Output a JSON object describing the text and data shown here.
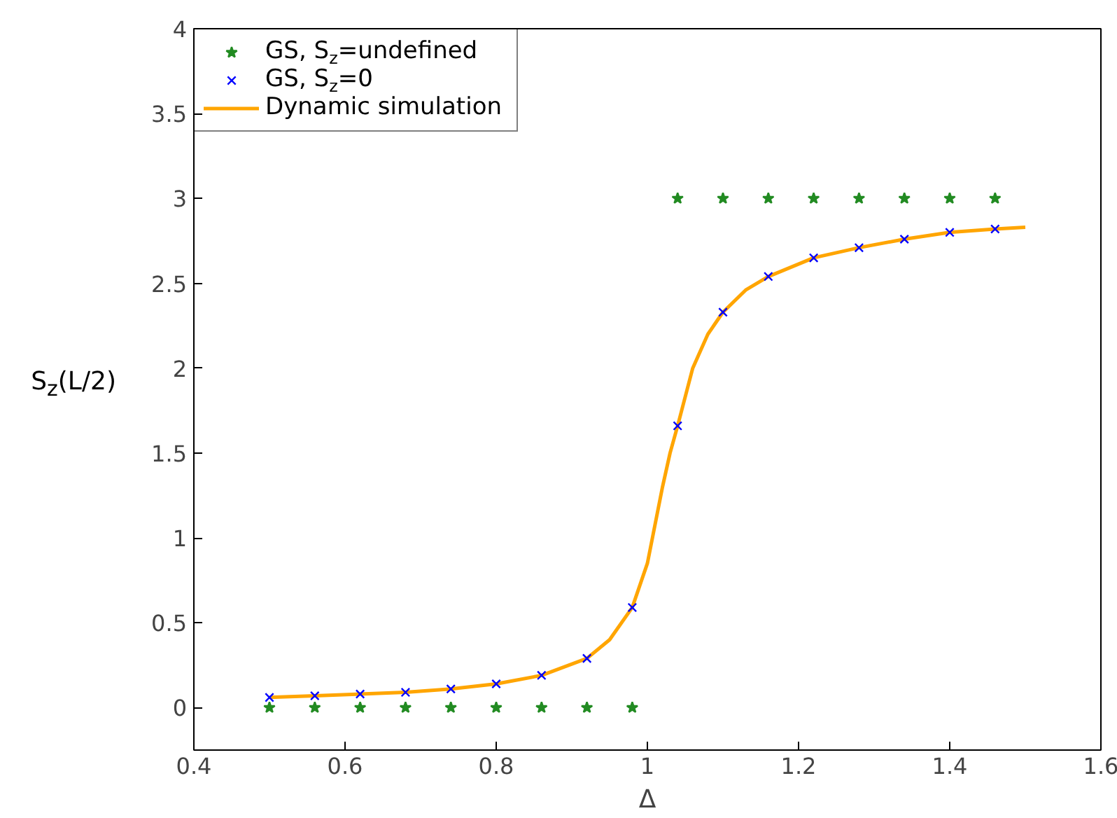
{
  "chart_data": {
    "type": "scatter",
    "xlabel": "Δ",
    "ylabel": "S$_{z}$(L/2)",
    "xlim": [
      0.4,
      1.6
    ],
    "ylim": [
      -0.25,
      4
    ],
    "xticks": [
      0.4,
      0.6,
      0.8,
      1,
      1.2,
      1.4,
      1.6
    ],
    "yticks": [
      0,
      0.5,
      1,
      1.5,
      2,
      2.5,
      3,
      3.5,
      4
    ],
    "grid": false,
    "legend": "top left",
    "series": [
      {
        "name": "GS, S$_{z}$=undefined",
        "marker": "star",
        "color": "#228b22",
        "x": [
          0.5,
          0.56,
          0.62,
          0.68,
          0.74,
          0.8,
          0.86,
          0.92,
          0.98,
          1.04,
          1.1,
          1.16,
          1.22,
          1.28,
          1.34,
          1.4,
          1.46
        ],
        "values": [
          0,
          0,
          0,
          0,
          0,
          0,
          0,
          0,
          0,
          3,
          3,
          3,
          3,
          3,
          3,
          3,
          3
        ]
      },
      {
        "name": "GS, S$_{z}$=0",
        "marker": "cross",
        "color": "#0000ff",
        "x": [
          0.5,
          0.56,
          0.62,
          0.68,
          0.74,
          0.8,
          0.86,
          0.92,
          0.98,
          1.04,
          1.1,
          1.16,
          1.22,
          1.28,
          1.34,
          1.4,
          1.46
        ],
        "values": [
          0.06,
          0.07,
          0.08,
          0.09,
          0.11,
          0.14,
          0.19,
          0.29,
          0.59,
          1.66,
          2.33,
          2.54,
          2.65,
          2.71,
          2.76,
          2.8,
          2.82
        ]
      },
      {
        "name": "Dynamic simulation",
        "type": "line",
        "marker": "none",
        "color": "#ffa500",
        "x": [
          0.5,
          0.56,
          0.62,
          0.68,
          0.74,
          0.8,
          0.86,
          0.92,
          0.95,
          0.98,
          1.0,
          1.02,
          1.03,
          1.04,
          1.06,
          1.08,
          1.1,
          1.13,
          1.16,
          1.22,
          1.28,
          1.34,
          1.4,
          1.46,
          1.5
        ],
        "values": [
          0.06,
          0.07,
          0.08,
          0.09,
          0.11,
          0.14,
          0.19,
          0.29,
          0.4,
          0.59,
          0.85,
          1.3,
          1.5,
          1.66,
          2.0,
          2.2,
          2.33,
          2.46,
          2.54,
          2.65,
          2.71,
          2.76,
          2.8,
          2.82,
          2.83
        ]
      }
    ]
  }
}
